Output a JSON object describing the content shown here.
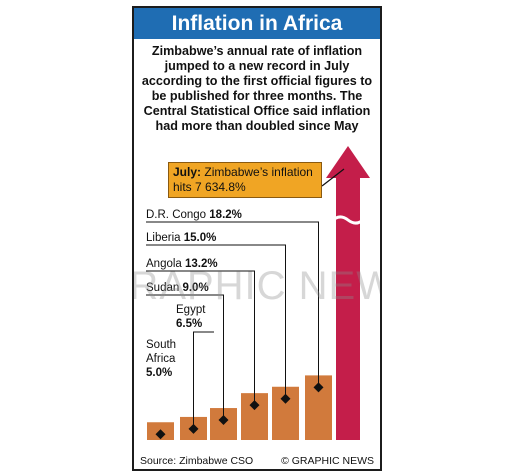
{
  "title": "Inflation in Africa",
  "intro": "Zimbabwe’s annual rate of inflation jumped to a new record in July according to the first official figures to be published for three months. The Central Statistical Office said inflation had more than doubled since May",
  "callout": {
    "lead": "July:",
    "text": "Zimbabwe’s inflation hits 7 634.8%"
  },
  "source": "Source: Zimbabwe CSO",
  "credit": "© GRAPHIC NEWS",
  "watermark": "GRAPHIC NEWS",
  "colors": {
    "title_bg": "#1f6db3",
    "bar": "#d17a3c",
    "zimbabwe_arrow": "#c41e4a",
    "callout_bg": "#f0a524"
  },
  "chart_data": {
    "type": "bar",
    "title": "Inflation in Africa",
    "categories": [
      "South Africa",
      "Egypt",
      "Sudan",
      "Angola",
      "Liberia",
      "D.R. Congo",
      "Zimbabwe"
    ],
    "values": [
      5.0,
      6.5,
      9.0,
      13.2,
      15.0,
      18.2,
      7634.8
    ],
    "labels": [
      {
        "name": "South",
        "name2": "Africa",
        "value": "5.0%"
      },
      {
        "name": "Egypt",
        "value": "6.5%"
      },
      {
        "name": "Sudan",
        "value": "9.0%"
      },
      {
        "name": "Angola",
        "value": "13.2%"
      },
      {
        "name": "Liberia",
        "value": "15.0%"
      },
      {
        "name": "D.R. Congo",
        "value": "18.2%"
      }
    ],
    "axis_break": true,
    "unit": "%"
  }
}
